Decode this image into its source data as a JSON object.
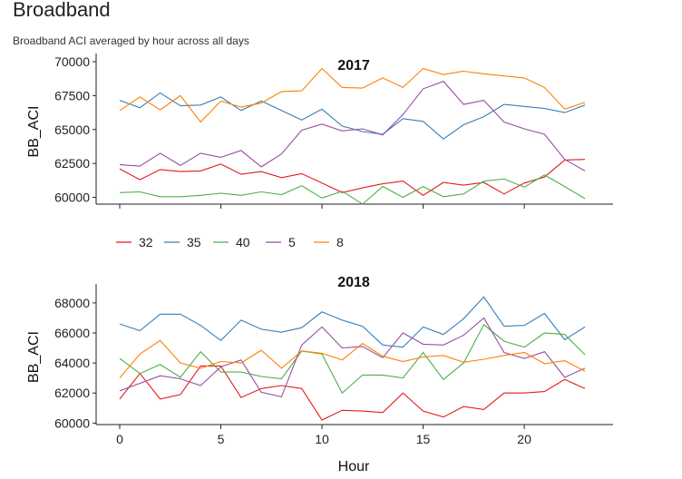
{
  "page": {
    "title": "Broadband",
    "subtitle": "Broadband ACI averaged by hour across all days"
  },
  "chart_data": {
    "type": "line",
    "xlabel": "Hour",
    "ylabel": "BB_ACI",
    "x_ticks": [
      0,
      5,
      10,
      15,
      20
    ],
    "xlim": [
      0,
      23
    ],
    "grid": false,
    "legend_position": "between panels",
    "legend": [
      {
        "name": "32",
        "color": "#e41a1c"
      },
      {
        "name": "35",
        "color": "#377eb8"
      },
      {
        "name": "40",
        "color": "#4daf4a"
      },
      {
        "name": "5",
        "color": "#984ea3"
      },
      {
        "name": "8",
        "color": "#ff7f00"
      }
    ],
    "x": [
      0,
      1,
      2,
      3,
      4,
      5,
      6,
      7,
      8,
      9,
      10,
      11,
      12,
      13,
      14,
      15,
      16,
      17,
      18,
      19,
      20,
      21,
      22,
      23
    ],
    "panels": [
      {
        "title": "2017",
        "y_ticks": [
          "60000",
          "62500",
          "65000",
          "67500",
          "70000"
        ],
        "ylim": [
          59500,
          70200
        ],
        "series": [
          {
            "name": "32",
            "values": [
              62100,
              61300,
              62050,
              61900,
              61950,
              62450,
              61700,
              61900,
              61450,
              61750,
              61050,
              60350,
              60700,
              61000,
              61200,
              60150,
              61100,
              60900,
              61100,
              60250,
              61050,
              61500,
              62750,
              62800
            ]
          },
          {
            "name": "35",
            "values": [
              67150,
              66600,
              67700,
              66750,
              66800,
              67400,
              66400,
              67100,
              66400,
              65700,
              66500,
              65250,
              64850,
              64650,
              65800,
              65600,
              64300,
              65350,
              65950,
              66850,
              66700,
              66550,
              66250,
              66800
            ]
          },
          {
            "name": "40",
            "values": [
              60350,
              60400,
              60050,
              60050,
              60150,
              60300,
              60150,
              60400,
              60200,
              60850,
              59950,
              60450,
              59500,
              60800,
              60000,
              60800,
              60050,
              60250,
              61200,
              61350,
              60750,
              61650,
              60800,
              59900
            ]
          },
          {
            "name": "5",
            "values": [
              62400,
              62300,
              63250,
              62350,
              63250,
              62950,
              63450,
              62250,
              63200,
              64950,
              65400,
              64900,
              65050,
              64600,
              66100,
              68000,
              68550,
              66850,
              67150,
              65550,
              65050,
              64650,
              62800,
              61950
            ]
          },
          {
            "name": "8",
            "values": [
              66400,
              67400,
              66450,
              67500,
              65550,
              67100,
              66650,
              66950,
              67800,
              67850,
              69500,
              68100,
              68050,
              68800,
              68100,
              69500,
              69050,
              69300,
              69100,
              68950,
              68800,
              68100,
              66500,
              67000
            ]
          }
        ]
      },
      {
        "title": "2018",
        "y_ticks": [
          "60000",
          "62000",
          "64000",
          "66000",
          "68000"
        ],
        "ylim": [
          59900,
          68900
        ],
        "series": [
          {
            "name": "32",
            "values": [
              61600,
              63300,
              61600,
              61900,
              63800,
              63800,
              61700,
              62300,
              62500,
              62300,
              60200,
              60850,
              60800,
              60700,
              62000,
              60800,
              60400,
              61100,
              60900,
              62000,
              62000,
              62100,
              62900,
              62300
            ]
          },
          {
            "name": "35",
            "values": [
              66600,
              66150,
              67250,
              67250,
              66500,
              65500,
              66850,
              66250,
              66050,
              66350,
              67400,
              66850,
              66450,
              65200,
              65050,
              66400,
              65900,
              66950,
              68400,
              66450,
              66500,
              67300,
              65550,
              66400
            ]
          },
          {
            "name": "40",
            "values": [
              64300,
              63300,
              63900,
              63050,
              64750,
              63400,
              63400,
              63100,
              62950,
              64800,
              64600,
              62000,
              63200,
              63200,
              63000,
              64700,
              62900,
              64000,
              66550,
              65450,
              65050,
              66000,
              65900,
              64550
            ]
          },
          {
            "name": "5",
            "values": [
              62150,
              62650,
              63150,
              62950,
              62500,
              63750,
              64200,
              62050,
              61750,
              65200,
              66400,
              65000,
              65100,
              64350,
              66000,
              65250,
              65200,
              65850,
              67000,
              64700,
              64300,
              64750,
              63050,
              63650
            ]
          },
          {
            "name": "8",
            "values": [
              63000,
              64600,
              65500,
              64000,
              63650,
              64100,
              64000,
              64850,
              63650,
              64800,
              64650,
              64200,
              65300,
              64450,
              64100,
              64400,
              64500,
              64050,
              64250,
              64500,
              64700,
              63950,
              64150,
              63450
            ]
          }
        ]
      }
    ]
  }
}
